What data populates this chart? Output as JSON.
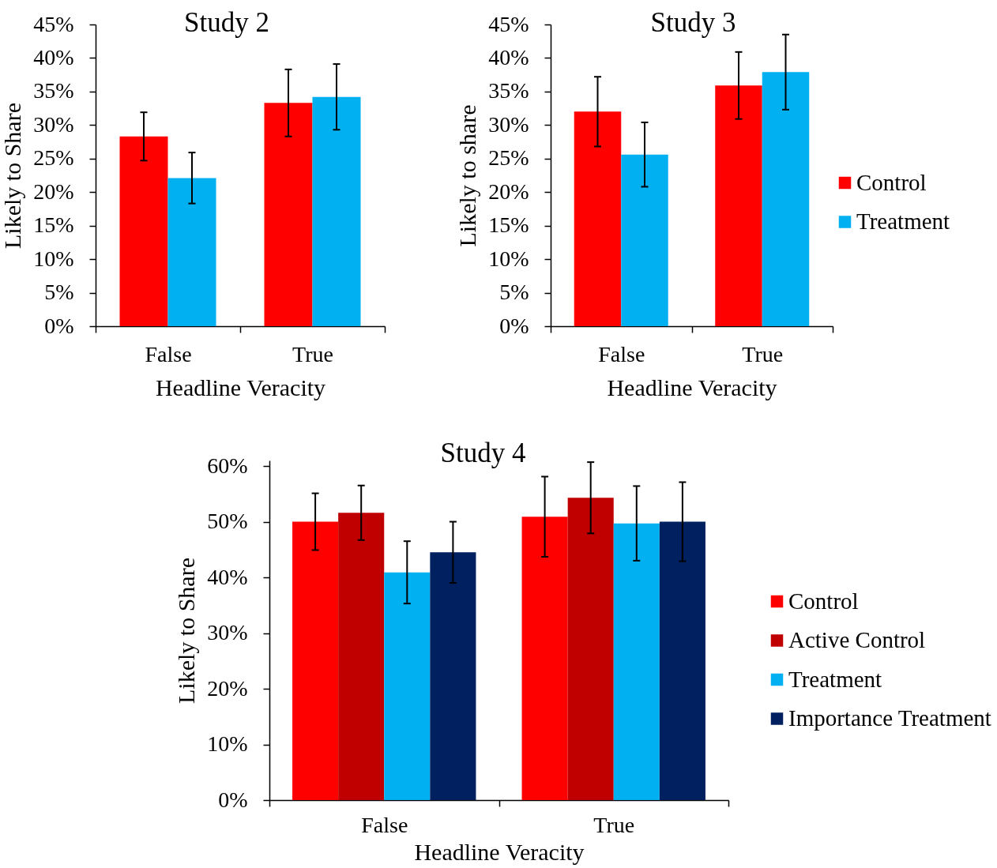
{
  "chart_data": [
    {
      "type": "bar",
      "title": "Study 2",
      "xlabel": "Headline Veracity",
      "ylabel": "Likely to Share",
      "categories": [
        "False",
        "True"
      ],
      "series": [
        {
          "color": "#ff0000",
          "values": [
            28.3,
            33.3
          ],
          "errors": [
            3.6,
            5.0
          ]
        },
        {
          "color": "#00b0f0",
          "values": [
            22.1,
            34.2
          ],
          "errors": [
            3.8,
            4.9
          ]
        }
      ],
      "ylim": [
        0,
        45
      ],
      "yticks": [
        {
          "value": 0,
          "label": "0%"
        },
        {
          "value": 5,
          "label": "5%"
        },
        {
          "value": 10,
          "label": "10%"
        },
        {
          "value": 15,
          "label": "15%"
        },
        {
          "value": 20,
          "label": "20%"
        },
        {
          "value": 25,
          "label": "25%"
        },
        {
          "value": 30,
          "label": "30%"
        },
        {
          "value": 35,
          "label": "35%"
        },
        {
          "value": 40,
          "label": "40%"
        },
        {
          "value": 45,
          "label": "45%"
        }
      ]
    },
    {
      "type": "bar",
      "title": "Study 3",
      "xlabel": "Headline Veracity",
      "ylabel": "Likely to share",
      "categories": [
        "False",
        "True"
      ],
      "series": [
        {
          "name": "Control",
          "color": "#ff0000",
          "values": [
            32.0,
            35.9
          ],
          "errors": [
            5.2,
            5.0
          ]
        },
        {
          "name": "Treatment",
          "color": "#00b0f0",
          "values": [
            25.6,
            37.9
          ],
          "errors": [
            4.8,
            5.6
          ]
        }
      ],
      "ylim": [
        0,
        45
      ],
      "yticks": [
        {
          "value": 0,
          "label": "0%"
        },
        {
          "value": 5,
          "label": "5%"
        },
        {
          "value": 10,
          "label": "10%"
        },
        {
          "value": 15,
          "label": "15%"
        },
        {
          "value": 20,
          "label": "20%"
        },
        {
          "value": 25,
          "label": "25%"
        },
        {
          "value": 30,
          "label": "30%"
        },
        {
          "value": 35,
          "label": "35%"
        },
        {
          "value": 40,
          "label": "40%"
        },
        {
          "value": 45,
          "label": "45%"
        }
      ],
      "legend": "right"
    },
    {
      "type": "bar",
      "title": "Study 4",
      "xlabel": "Headline Veracity",
      "ylabel": "Likely to Share",
      "categories": [
        "False",
        "True"
      ],
      "series": [
        {
          "name": "Control",
          "color": "#ff0000",
          "values": [
            50.0,
            50.9
          ],
          "errors": [
            5.1,
            7.2
          ]
        },
        {
          "name": "Active Control",
          "color": "#c00000",
          "values": [
            51.6,
            54.3
          ],
          "errors": [
            4.9,
            6.4
          ]
        },
        {
          "name": "Treatment",
          "color": "#00b0f0",
          "values": [
            40.9,
            49.7
          ],
          "errors": [
            5.6,
            6.7
          ]
        },
        {
          "name": "Importance Treatment",
          "color": "#002060",
          "values": [
            44.5,
            50.0
          ],
          "errors": [
            5.5,
            7.1
          ]
        }
      ],
      "ylim": [
        0,
        61
      ],
      "yticks": [
        {
          "value": 0,
          "label": "0%"
        },
        {
          "value": 10,
          "label": "10%"
        },
        {
          "value": 20,
          "label": "20%"
        },
        {
          "value": 30,
          "label": "30%"
        },
        {
          "value": 40,
          "label": "40%"
        },
        {
          "value": 50,
          "label": "50%"
        },
        {
          "value": 60,
          "label": "60%"
        }
      ],
      "legend": "right"
    }
  ]
}
